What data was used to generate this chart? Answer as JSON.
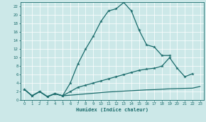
{
  "xlabel": "Humidex (Indice chaleur)",
  "bg_color": "#cce8e8",
  "grid_color": "#ffffff",
  "line_color": "#1a6b6b",
  "xlim": [
    -0.5,
    23.5
  ],
  "ylim": [
    0,
    23
  ],
  "xticks": [
    0,
    1,
    2,
    3,
    4,
    5,
    6,
    7,
    8,
    9,
    10,
    11,
    12,
    13,
    14,
    15,
    16,
    17,
    18,
    19,
    20,
    21,
    22,
    23
  ],
  "yticks": [
    0,
    2,
    4,
    6,
    8,
    10,
    12,
    14,
    16,
    18,
    20,
    22
  ],
  "line1_x": [
    0,
    1,
    2,
    3,
    4,
    5,
    6,
    7,
    8,
    9,
    10,
    11,
    12,
    13,
    14,
    15,
    16,
    17,
    18,
    19
  ],
  "line1_y": [
    2.5,
    1.0,
    2.0,
    0.8,
    1.5,
    1.0,
    4.0,
    8.5,
    12.0,
    15.0,
    18.5,
    21.0,
    21.5,
    23.0,
    21.0,
    16.5,
    13.0,
    12.5,
    10.5,
    10.5
  ],
  "line2_x": [
    0,
    1,
    2,
    3,
    4,
    5,
    6,
    7,
    8,
    9,
    10,
    11,
    12,
    13,
    14,
    15,
    16,
    17,
    18,
    19,
    20,
    21,
    22
  ],
  "line2_y": [
    2.5,
    1.0,
    2.0,
    0.8,
    1.5,
    1.0,
    2.0,
    3.0,
    3.5,
    4.0,
    4.5,
    5.0,
    5.5,
    6.0,
    6.5,
    7.0,
    7.3,
    7.5,
    8.0,
    10.0,
    7.5,
    5.5,
    6.2
  ],
  "line3_x": [
    0,
    1,
    2,
    3,
    4,
    5,
    6,
    7,
    8,
    9,
    10,
    11,
    12,
    13,
    14,
    15,
    16,
    17,
    18,
    19,
    20,
    21,
    22,
    23
  ],
  "line3_y": [
    2.5,
    1.0,
    2.0,
    0.8,
    1.5,
    1.0,
    1.15,
    1.3,
    1.45,
    1.6,
    1.75,
    1.9,
    2.0,
    2.1,
    2.2,
    2.3,
    2.4,
    2.45,
    2.55,
    2.65,
    2.7,
    2.75,
    2.8,
    3.2
  ]
}
